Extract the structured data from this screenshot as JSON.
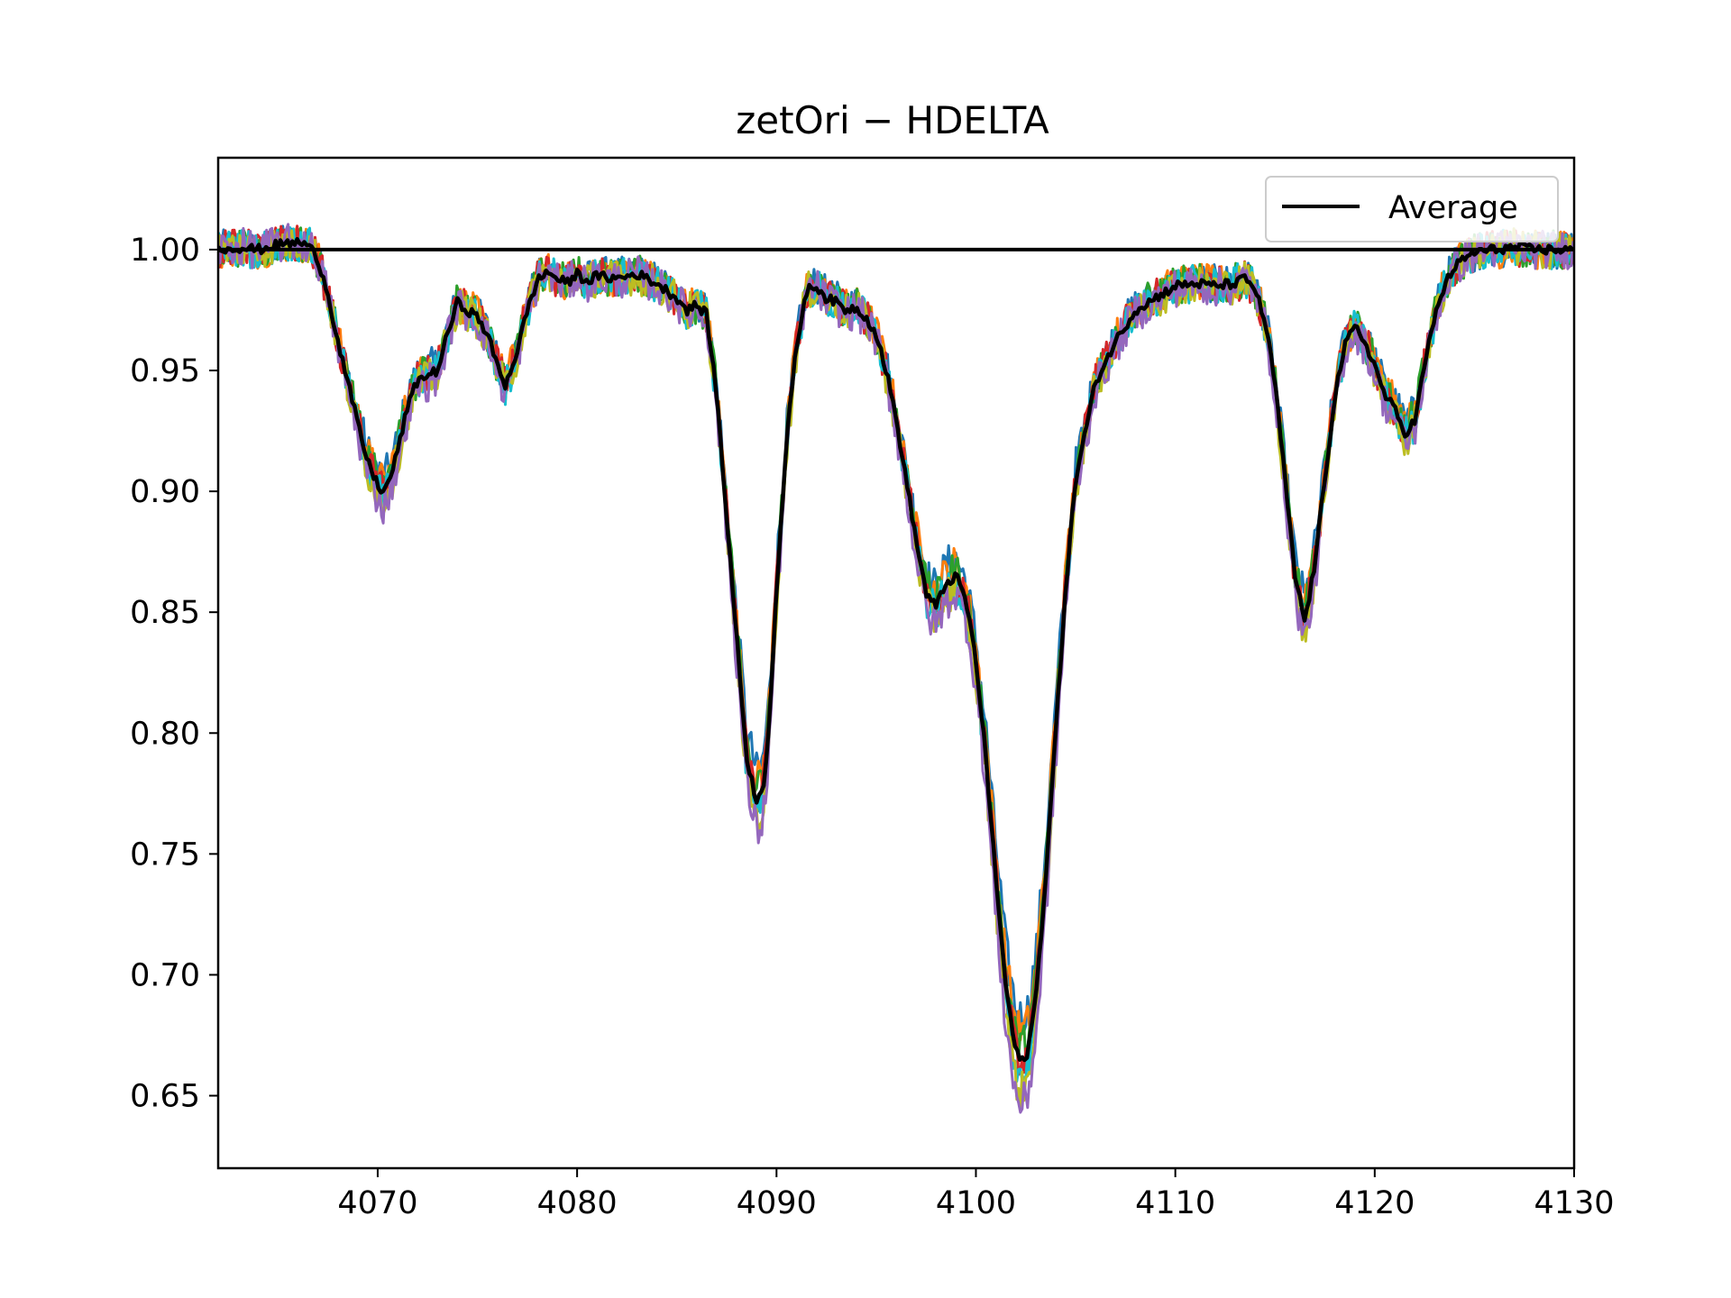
{
  "chart_data": {
    "type": "line",
    "title": "zetOri − HDELTA",
    "xlabel": "",
    "ylabel": "",
    "xlim": [
      4062,
      4130
    ],
    "ylim": [
      0.62,
      1.038
    ],
    "xticks": [
      4070,
      4080,
      4090,
      4100,
      4110,
      4120,
      4130
    ],
    "xtick_labels": [
      "4070",
      "4080",
      "4090",
      "4100",
      "4110",
      "4120",
      "4130"
    ],
    "yticks": [
      0.65,
      0.7,
      0.75,
      0.8,
      0.85,
      0.9,
      0.95,
      1.0
    ],
    "ytick_labels": [
      "0.65",
      "0.70",
      "0.75",
      "0.80",
      "0.85",
      "0.90",
      "0.95",
      "1.00"
    ],
    "grid": false,
    "legend": {
      "position": "top-right",
      "entries": [
        "Average"
      ]
    },
    "reference_line": {
      "y": 1.0,
      "color": "#000000"
    },
    "average": {
      "name": "Average",
      "color": "#000000",
      "x": [
        4062.0,
        4063.0,
        4064.0,
        4065.0,
        4066.0,
        4066.5,
        4067.0,
        4067.5,
        4068.0,
        4068.5,
        4069.0,
        4069.5,
        4070.0,
        4070.3,
        4070.8,
        4071.5,
        4072.0,
        4072.5,
        4073.0,
        4073.5,
        4074.0,
        4074.5,
        4075.0,
        4075.5,
        4076.0,
        4076.4,
        4077.0,
        4077.5,
        4078.0,
        4078.5,
        4079.0,
        4079.5,
        4080.0,
        4080.5,
        4081.0,
        4082.0,
        4083.0,
        4084.0,
        4085.0,
        4085.5,
        4086.0,
        4086.5,
        4087.0,
        4087.5,
        4088.0,
        4088.5,
        4089.0,
        4089.3,
        4089.6,
        4090.0,
        4090.5,
        4091.0,
        4091.5,
        4092.0,
        4092.5,
        4093.0,
        4093.5,
        4094.0,
        4094.5,
        4095.0,
        4095.5,
        4096.0,
        4096.5,
        4097.0,
        4097.5,
        4098.0,
        4098.5,
        4099.0,
        4099.5,
        4100.0,
        4100.5,
        4101.0,
        4101.5,
        4102.0,
        4102.3,
        4102.6,
        4103.0,
        4103.5,
        4104.0,
        4104.5,
        4105.0,
        4106.0,
        4107.0,
        4108.0,
        4109.0,
        4110.0,
        4111.0,
        4112.0,
        4113.0,
        4113.5,
        4114.0,
        4114.5,
        4115.0,
        4115.5,
        4116.0,
        4116.5,
        4117.0,
        4117.5,
        4118.0,
        4118.5,
        4119.0,
        4119.5,
        4120.0,
        4120.5,
        4121.0,
        4121.5,
        4122.0,
        4122.5,
        4123.0,
        4123.5,
        4124.0,
        4125.0,
        4126.0,
        4127.0,
        4128.0,
        4129.0,
        4130.0
      ],
      "y": [
        1.0,
        1.001,
        1.0,
        1.002,
        1.003,
        1.002,
        0.996,
        0.982,
        0.962,
        0.945,
        0.928,
        0.912,
        0.903,
        0.899,
        0.91,
        0.935,
        0.946,
        0.948,
        0.95,
        0.965,
        0.978,
        0.975,
        0.972,
        0.965,
        0.952,
        0.944,
        0.958,
        0.975,
        0.987,
        0.991,
        0.988,
        0.986,
        0.99,
        0.987,
        0.989,
        0.988,
        0.99,
        0.986,
        0.98,
        0.975,
        0.977,
        0.973,
        0.94,
        0.89,
        0.84,
        0.79,
        0.772,
        0.775,
        0.8,
        0.86,
        0.92,
        0.96,
        0.983,
        0.985,
        0.98,
        0.978,
        0.975,
        0.976,
        0.972,
        0.965,
        0.95,
        0.93,
        0.905,
        0.88,
        0.858,
        0.852,
        0.862,
        0.865,
        0.855,
        0.83,
        0.79,
        0.74,
        0.695,
        0.668,
        0.664,
        0.668,
        0.69,
        0.74,
        0.8,
        0.86,
        0.905,
        0.945,
        0.962,
        0.975,
        0.98,
        0.985,
        0.986,
        0.985,
        0.986,
        0.988,
        0.984,
        0.97,
        0.945,
        0.905,
        0.865,
        0.846,
        0.87,
        0.905,
        0.94,
        0.96,
        0.968,
        0.962,
        0.952,
        0.94,
        0.934,
        0.924,
        0.929,
        0.952,
        0.972,
        0.985,
        0.993,
        0.999,
        1.0,
        1.001,
        1.0,
        1.0,
        1.0
      ]
    },
    "series_colors": [
      "#1f77b4",
      "#ff7f0e",
      "#2ca02c",
      "#d62728",
      "#17becf",
      "#bcbd22",
      "#9467bd"
    ]
  }
}
